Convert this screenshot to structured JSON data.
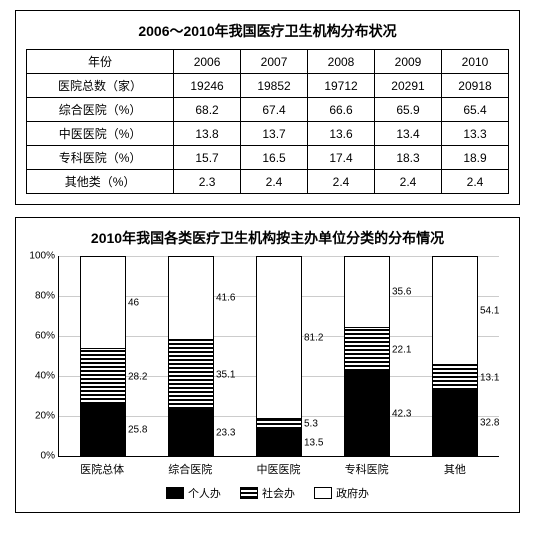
{
  "table": {
    "title": "2006～2010年我国医疗卫生机构分布状况",
    "header": [
      "年份",
      "2006",
      "2007",
      "2008",
      "2009",
      "2010"
    ],
    "rows": [
      [
        "医院总数（家）",
        "19246",
        "19852",
        "19712",
        "20291",
        "20918"
      ],
      [
        "综合医院（%）",
        "68.2",
        "67.4",
        "66.6",
        "65.9",
        "65.4"
      ],
      [
        "中医医院（%）",
        "13.8",
        "13.7",
        "13.6",
        "13.4",
        "13.3"
      ],
      [
        "专科医院（%）",
        "15.7",
        "16.5",
        "17.4",
        "18.3",
        "18.9"
      ],
      [
        "其他类（%）",
        "2.3",
        "2.4",
        "2.4",
        "2.4",
        "2.4"
      ]
    ]
  },
  "chart": {
    "title": "2010年我国各类医疗卫生机构按主办单位分类的分布情况",
    "type": "stacked-bar",
    "ylim": [
      0,
      100
    ],
    "ytick_step": 20,
    "categories": [
      "医院总体",
      "综合医院",
      "中医医院",
      "专科医院",
      "其他"
    ],
    "series": [
      {
        "name": "个人办",
        "style": "black"
      },
      {
        "name": "社会办",
        "style": "hatch"
      },
      {
        "name": "政府办",
        "style": "white"
      }
    ],
    "data": [
      {
        "black": 25.8,
        "hatch": 28.2,
        "white": 46
      },
      {
        "black": 23.3,
        "hatch": 35.1,
        "white": 41.6
      },
      {
        "black": 13.5,
        "hatch": 5.3,
        "white": 81.2
      },
      {
        "black": 42.3,
        "hatch": 22.1,
        "white": 35.6
      },
      {
        "black": 32.8,
        "hatch": 13.1,
        "white": 54.1
      }
    ],
    "grid_color": "#cccccc",
    "background_color": "#ffffff",
    "label_fontsize": 10
  }
}
